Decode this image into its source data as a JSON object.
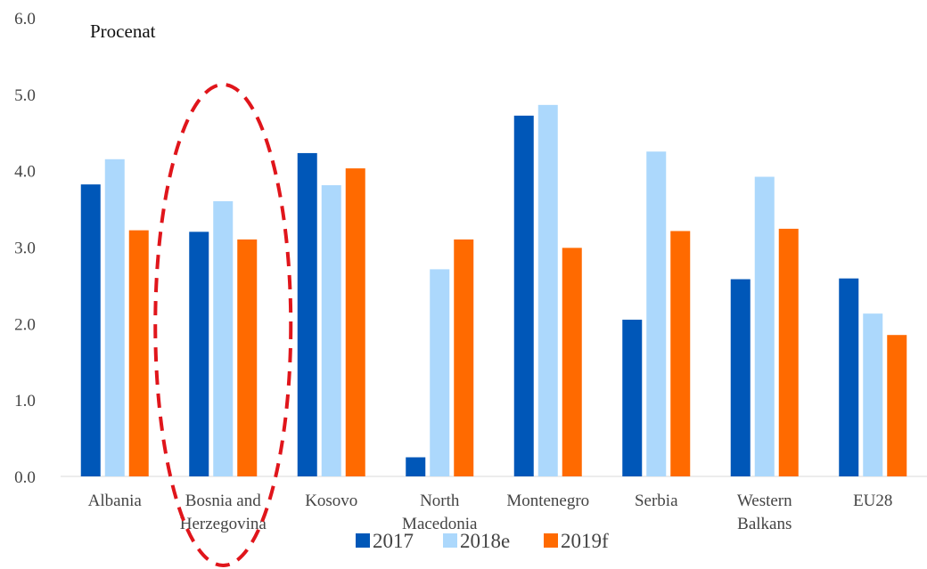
{
  "chart_data": {
    "type": "bar",
    "ylabel": "Procenat",
    "ylim": [
      0,
      6
    ],
    "yticks": [
      "0.0",
      "1.0",
      "2.0",
      "3.0",
      "4.0",
      "5.0",
      "6.0"
    ],
    "grid": false,
    "legend_position": "bottom",
    "categories": [
      [
        "Albania"
      ],
      [
        "Bosnia and",
        "Herzegovina"
      ],
      [
        "Kosovo"
      ],
      [
        "North",
        "Macedonia"
      ],
      [
        "Montenegro"
      ],
      [
        "Serbia"
      ],
      [
        "Western",
        "Balkans"
      ],
      [
        "EU28"
      ]
    ],
    "series": [
      {
        "name": "2017",
        "color": "#0057b8",
        "values": [
          3.82,
          3.2,
          4.23,
          0.25,
          4.72,
          2.05,
          2.58,
          2.59
        ]
      },
      {
        "name": "2018e",
        "color": "#acd8fc",
        "values": [
          4.15,
          3.6,
          3.81,
          2.71,
          4.86,
          4.25,
          3.92,
          2.13
        ]
      },
      {
        "name": "2019f",
        "color": "#ff6a00",
        "values": [
          3.22,
          3.1,
          4.03,
          3.1,
          2.99,
          3.21,
          3.24,
          1.85
        ]
      }
    ],
    "annotations": [
      {
        "type": "dashed-ellipse",
        "target_category": [
          "Bosnia and",
          "Herzegovina"
        ],
        "color": "#e0151b"
      }
    ]
  }
}
